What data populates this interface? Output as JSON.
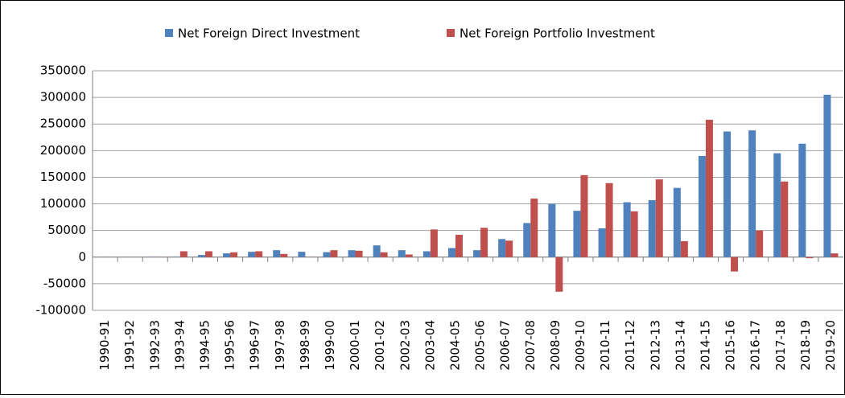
{
  "chart_data": {
    "type": "bar",
    "categories": [
      "1990-91",
      "1991-92",
      "1992-93",
      "1993-94",
      "1994-95",
      "1995-96",
      "1996-97",
      "1997-98",
      "1998-99",
      "1999-00",
      "2000-01",
      "2001-02",
      "2002-03",
      "2003-04",
      "2004-05",
      "2005-06",
      "2006-07",
      "2007-08",
      "2008-09",
      "2009-10",
      "2010-11",
      "2011-12",
      "2012-13",
      "2013-14",
      "2014-15",
      "2015-16",
      "2016-17",
      "2017-18",
      "2018-19",
      "2019-20"
    ],
    "series": [
      {
        "name": "Net Foreign Direct Investment",
        "color": "#4f81bd",
        "values": [
          100,
          100,
          300,
          600,
          4000,
          7000,
          10000,
          13000,
          10000,
          9300,
          13000,
          22000,
          13000,
          11000,
          17000,
          13000,
          34000,
          64000,
          100000,
          87000,
          54000,
          103000,
          107000,
          130000,
          190000,
          236000,
          238000,
          195000,
          213000,
          305000
        ]
      },
      {
        "name": "Net Foreign Portfolio Investment",
        "color": "#c0504d",
        "values": [
          10,
          0,
          200,
          11000,
          11000,
          9000,
          11000,
          6000,
          -300,
          13000,
          12000,
          9000,
          5000,
          52000,
          42000,
          55000,
          31000,
          110000,
          -65000,
          154000,
          139000,
          86000,
          146000,
          30000,
          258000,
          -27000,
          50000,
          142000,
          -2000,
          7000
        ]
      }
    ],
    "ylim": [
      -100000,
      350000
    ],
    "yticks": [
      -100000,
      -50000,
      0,
      50000,
      100000,
      150000,
      200000,
      250000,
      300000,
      350000
    ],
    "grid": true,
    "legend": "top"
  }
}
